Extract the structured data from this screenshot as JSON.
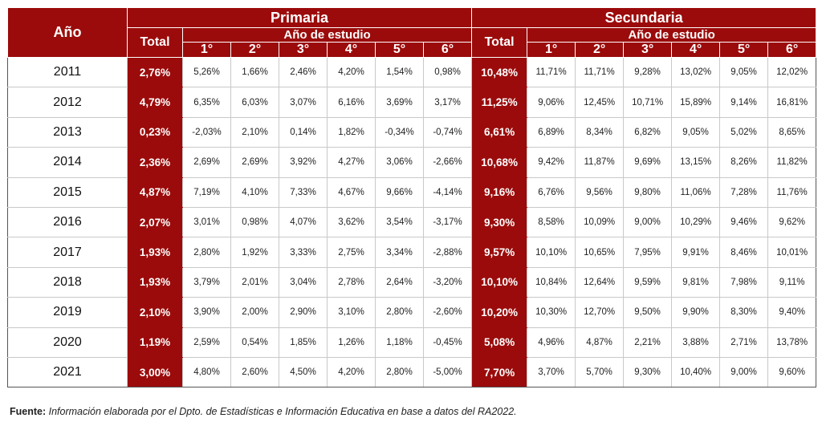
{
  "header": {
    "year_col": "Año",
    "groups": [
      {
        "title": "Primaria",
        "total_label": "Total",
        "sub_label": "Año de estudio",
        "grades": [
          "1°",
          "2°",
          "3°",
          "4°",
          "5°",
          "6°"
        ]
      },
      {
        "title": "Secundaria",
        "total_label": "Total",
        "sub_label": "Año de estudio",
        "grades": [
          "1°",
          "2°",
          "3°",
          "4°",
          "5°",
          "6°"
        ]
      }
    ]
  },
  "rows": [
    {
      "year": "2011",
      "prim_total": "2,76%",
      "prim": [
        "5,26%",
        "1,66%",
        "2,46%",
        "4,20%",
        "1,54%",
        "0,98%"
      ],
      "sec_total": "10,48%",
      "sec": [
        "11,71%",
        "11,71%",
        "9,28%",
        "13,02%",
        "9,05%",
        "12,02%"
      ]
    },
    {
      "year": "2012",
      "prim_total": "4,79%",
      "prim": [
        "6,35%",
        "6,03%",
        "3,07%",
        "6,16%",
        "3,69%",
        "3,17%"
      ],
      "sec_total": "11,25%",
      "sec": [
        "9,06%",
        "12,45%",
        "10,71%",
        "15,89%",
        "9,14%",
        "16,81%"
      ]
    },
    {
      "year": "2013",
      "prim_total": "0,23%",
      "prim": [
        "-2,03%",
        "2,10%",
        "0,14%",
        "1,82%",
        "-0,34%",
        "-0,74%"
      ],
      "sec_total": "6,61%",
      "sec": [
        "6,89%",
        "8,34%",
        "6,82%",
        "9,05%",
        "5,02%",
        "8,65%"
      ]
    },
    {
      "year": "2014",
      "prim_total": "2,36%",
      "prim": [
        "2,69%",
        "2,69%",
        "3,92%",
        "4,27%",
        "3,06%",
        "-2,66%"
      ],
      "sec_total": "10,68%",
      "sec": [
        "9,42%",
        "11,87%",
        "9,69%",
        "13,15%",
        "8,26%",
        "11,82%"
      ]
    },
    {
      "year": "2015",
      "prim_total": "4,87%",
      "prim": [
        "7,19%",
        "4,10%",
        "7,33%",
        "4,67%",
        "9,66%",
        "-4,14%"
      ],
      "sec_total": "9,16%",
      "sec": [
        "6,76%",
        "9,56%",
        "9,80%",
        "11,06%",
        "7,28%",
        "11,76%"
      ]
    },
    {
      "year": "2016",
      "prim_total": "2,07%",
      "prim": [
        "3,01%",
        "0,98%",
        "4,07%",
        "3,62%",
        "3,54%",
        "-3,17%"
      ],
      "sec_total": "9,30%",
      "sec": [
        "8,58%",
        "10,09%",
        "9,00%",
        "10,29%",
        "9,46%",
        "9,62%"
      ]
    },
    {
      "year": "2017",
      "prim_total": "1,93%",
      "prim": [
        "2,80%",
        "1,92%",
        "3,33%",
        "2,75%",
        "3,34%",
        "-2,88%"
      ],
      "sec_total": "9,57%",
      "sec": [
        "10,10%",
        "10,65%",
        "7,95%",
        "9,91%",
        "8,46%",
        "10,01%"
      ]
    },
    {
      "year": "2018",
      "prim_total": "1,93%",
      "prim": [
        "3,79%",
        "2,01%",
        "3,04%",
        "2,78%",
        "2,64%",
        "-3,20%"
      ],
      "sec_total": "10,10%",
      "sec": [
        "10,84%",
        "12,64%",
        "9,59%",
        "9,81%",
        "7,98%",
        "9,11%"
      ]
    },
    {
      "year": "2019",
      "prim_total": "2,10%",
      "prim": [
        "3,90%",
        "2,00%",
        "2,90%",
        "3,10%",
        "2,80%",
        "-2,60%"
      ],
      "sec_total": "10,20%",
      "sec": [
        "10,30%",
        "12,70%",
        "9,50%",
        "9,90%",
        "8,30%",
        "9,40%"
      ]
    },
    {
      "year": "2020",
      "prim_total": "1,19%",
      "prim": [
        "2,59%",
        "0,54%",
        "1,85%",
        "1,26%",
        "1,18%",
        "-0,45%"
      ],
      "sec_total": "5,08%",
      "sec": [
        "4,96%",
        "4,87%",
        "2,21%",
        "3,88%",
        "2,71%",
        "13,78%"
      ]
    },
    {
      "year": "2021",
      "prim_total": "3,00%",
      "prim": [
        "4,80%",
        "2,60%",
        "4,50%",
        "4,20%",
        "2,80%",
        "-5,00%"
      ],
      "sec_total": "7,70%",
      "sec": [
        "3,70%",
        "5,70%",
        "9,30%",
        "10,40%",
        "9,00%",
        "9,60%"
      ]
    }
  ],
  "source": {
    "label": "Fuente:",
    "text": "Información elaborada por el Dpto. de Estadísticas e Información Educativa en base a datos del RA2022."
  },
  "colors": {
    "header_bg": "#9b0b0b",
    "header_text": "#ffffff"
  }
}
